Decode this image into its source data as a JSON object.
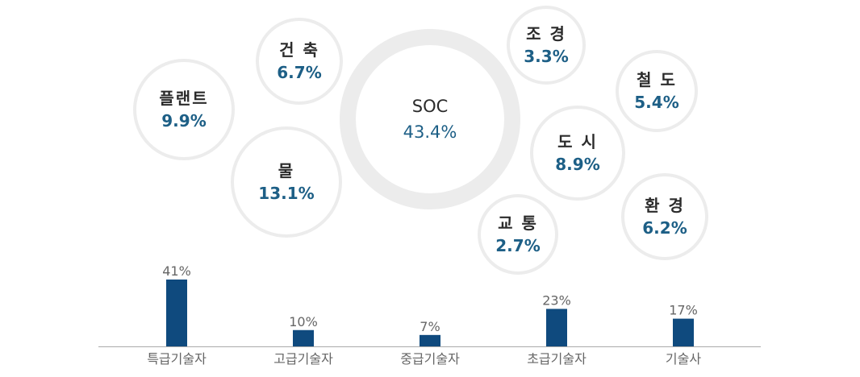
{
  "bubbles": {
    "center": {
      "name": "SOC",
      "pct": "43.4%"
    },
    "plant": {
      "name": "플랜트",
      "pct": "9.9%"
    },
    "arch": {
      "name": "건 축",
      "pct": "6.7%"
    },
    "water": {
      "name": "물",
      "pct": "13.1%"
    },
    "land": {
      "name": "조 경",
      "pct": "3.3%"
    },
    "rail": {
      "name": "철 도",
      "pct": "5.4%"
    },
    "urban": {
      "name": "도 시",
      "pct": "8.9%"
    },
    "traffic": {
      "name": "교 통",
      "pct": "2.7%"
    },
    "env": {
      "name": "환 경",
      "pct": "6.2%"
    }
  },
  "chart_data": [
    {
      "type": "bubble",
      "labels": [
        "SOC",
        "플랜트",
        "건축",
        "물",
        "조경",
        "철도",
        "도시",
        "교통",
        "환경"
      ],
      "values": [
        43.4,
        9.9,
        6.7,
        13.1,
        3.3,
        5.4,
        8.9,
        2.7,
        6.2
      ],
      "unit": "%"
    },
    {
      "type": "bar",
      "categories": [
        "특급기술자",
        "고급기술자",
        "중급기술자",
        "초급기술자",
        "기술사"
      ],
      "values": [
        41,
        10,
        7,
        23,
        17
      ],
      "data_labels": [
        "41%",
        "10%",
        "7%",
        "23%",
        "17%"
      ],
      "ylim": [
        0,
        41
      ],
      "bar_color": "#0f4a7e",
      "axis_color": "#aaaaaa",
      "label_color": "#666666"
    }
  ]
}
